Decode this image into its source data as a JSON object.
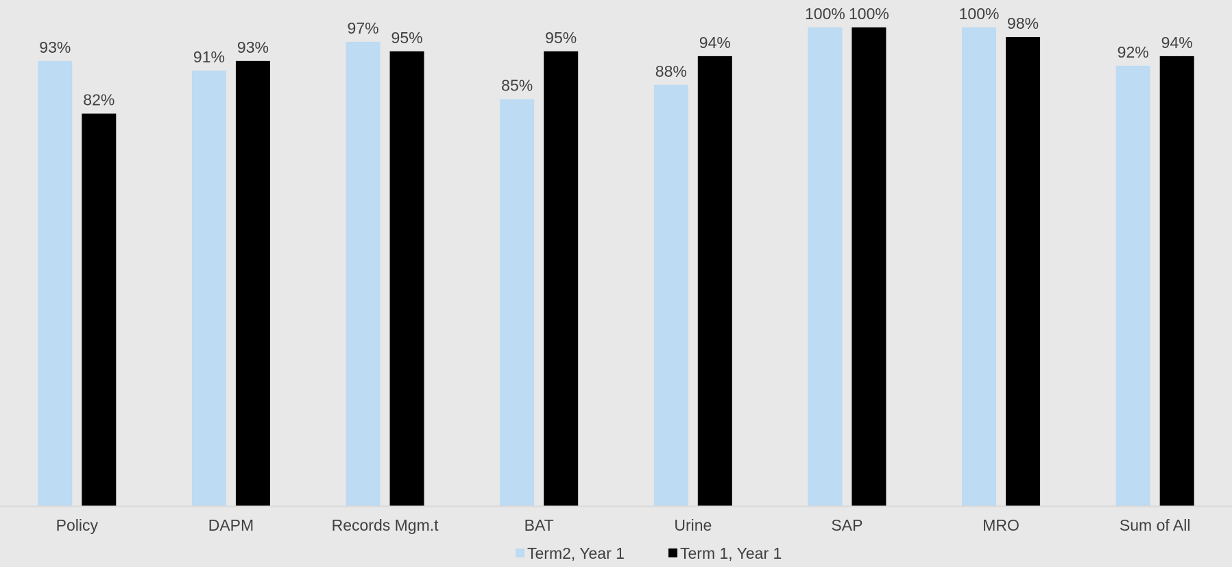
{
  "chart_data": {
    "type": "bar",
    "categories": [
      "Policy",
      "DAPM",
      "Records Mgm.t",
      "BAT",
      "Urine",
      "SAP",
      "MRO",
      "Sum of All"
    ],
    "series": [
      {
        "name": "Term2, Year 1",
        "color": "#bddbf2",
        "values": [
          93,
          91,
          97,
          85,
          88,
          100,
          100,
          92
        ],
        "labels": [
          "93%",
          "91%",
          "97%",
          "85%",
          "88%",
          "100%",
          "100%",
          "92%"
        ]
      },
      {
        "name": "Term 1, Year 1",
        "color": "#000000",
        "values": [
          82,
          93,
          95,
          95,
          94,
          100,
          98,
          94
        ],
        "labels": [
          "82%",
          "93%",
          "95%",
          "95%",
          "94%",
          "100%",
          "98%",
          "94%"
        ]
      }
    ],
    "ylim": [
      0,
      100
    ],
    "grid": false,
    "legend_position": "bottom-center",
    "background_color": "#e8e8e8",
    "axis_color": "#d9d9d9",
    "text_color": "#404040"
  }
}
